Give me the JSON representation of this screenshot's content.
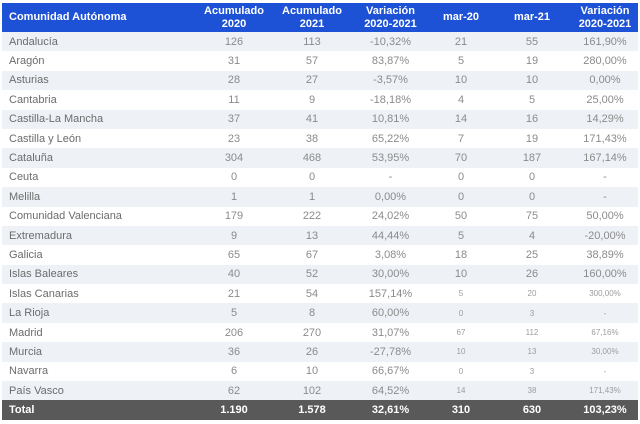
{
  "colors": {
    "header_bg": "#1d51d6",
    "header_text": "#ffffff",
    "stripe_bg": "#eef1f6",
    "row_bg": "#ffffff",
    "name_text": "#6c6c6c",
    "value_text": "#8b8b8b",
    "small_text": "#9d9d9d",
    "total_bg": "#595959",
    "total_text": "#ffffff"
  },
  "chart_data": {
    "type": "table",
    "columns": [
      "Comunidad Autónoma",
      "Acumulado 2020",
      "Acumulado 2021",
      "Variación 2020-2021",
      "mar-20",
      "mar-21",
      "Variación 2020-2021"
    ],
    "rows": [
      {
        "name": "Andalucía",
        "values": [
          "126",
          "113",
          "-10,32%",
          "21",
          "55",
          "161,90%"
        ],
        "small_last3": false
      },
      {
        "name": "Aragón",
        "values": [
          "31",
          "57",
          "83,87%",
          "5",
          "19",
          "280,00%"
        ],
        "small_last3": false
      },
      {
        "name": "Asturias",
        "values": [
          "28",
          "27",
          "-3,57%",
          "10",
          "10",
          "0,00%"
        ],
        "small_last3": false
      },
      {
        "name": "Cantabria",
        "values": [
          "11",
          "9",
          "-18,18%",
          "4",
          "5",
          "25,00%"
        ],
        "small_last3": false
      },
      {
        "name": "Castilla-La Mancha",
        "values": [
          "37",
          "41",
          "10,81%",
          "14",
          "16",
          "14,29%"
        ],
        "small_last3": false
      },
      {
        "name": "Castilla y León",
        "values": [
          "23",
          "38",
          "65,22%",
          "7",
          "19",
          "171,43%"
        ],
        "small_last3": false
      },
      {
        "name": "Cataluña",
        "values": [
          "304",
          "468",
          "53,95%",
          "70",
          "187",
          "167,14%"
        ],
        "small_last3": false
      },
      {
        "name": "Ceuta",
        "values": [
          "0",
          "0",
          "-",
          "0",
          "0",
          "-"
        ],
        "small_last3": false
      },
      {
        "name": "Melilla",
        "values": [
          "1",
          "1",
          "0,00%",
          "0",
          "0",
          "-"
        ],
        "small_last3": false
      },
      {
        "name": "Comunidad Valenciana",
        "values": [
          "179",
          "222",
          "24,02%",
          "50",
          "75",
          "50,00%"
        ],
        "small_last3": false
      },
      {
        "name": "Extremadura",
        "values": [
          "9",
          "13",
          "44,44%",
          "5",
          "4",
          "-20,00%"
        ],
        "small_last3": false
      },
      {
        "name": "Galicia",
        "values": [
          "65",
          "67",
          "3,08%",
          "18",
          "25",
          "38,89%"
        ],
        "small_last3": false
      },
      {
        "name": "Islas Baleares",
        "values": [
          "40",
          "52",
          "30,00%",
          "10",
          "26",
          "160,00%"
        ],
        "small_last3": false
      },
      {
        "name": "Islas Canarias",
        "values": [
          "21",
          "54",
          "157,14%",
          "5",
          "20",
          "300,00%"
        ],
        "small_last3": true
      },
      {
        "name": "La Rioja",
        "values": [
          "5",
          "8",
          "60,00%",
          "0",
          "3",
          "-"
        ],
        "small_last3": true
      },
      {
        "name": "Madrid",
        "values": [
          "206",
          "270",
          "31,07%",
          "67",
          "112",
          "67,16%"
        ],
        "small_last3": true
      },
      {
        "name": "Murcia",
        "values": [
          "36",
          "26",
          "-27,78%",
          "10",
          "13",
          "30,00%"
        ],
        "small_last3": true
      },
      {
        "name": "Navarra",
        "values": [
          "6",
          "10",
          "66,67%",
          "0",
          "3",
          "-"
        ],
        "small_last3": true
      },
      {
        "name": "País Vasco",
        "values": [
          "62",
          "102",
          "64,52%",
          "14",
          "38",
          "171,43%"
        ],
        "small_last3": true
      }
    ],
    "total": {
      "name": "Total",
      "values": [
        "1.190",
        "1.578",
        "32,61%",
        "310",
        "630",
        "103,23%"
      ]
    }
  }
}
